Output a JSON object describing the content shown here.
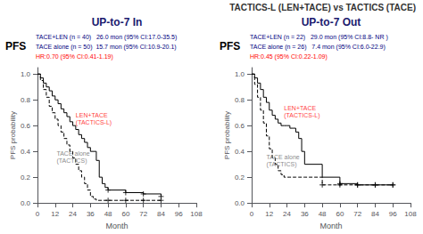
{
  "title": "TACTICS-L (LEN+TACE) vs TACTICS (TACE)",
  "chart_data": [
    {
      "type": "line",
      "title": "UP-to-7 In",
      "subtitle": "PFS",
      "xlabel": "Month",
      "ylabel": "PFS probability",
      "xlim": [
        0,
        108
      ],
      "xticks": [
        0,
        12,
        24,
        36,
        48,
        60,
        72,
        84,
        96,
        108
      ],
      "ylim": [
        0,
        1.05
      ],
      "yticks": [
        {
          "value": 0,
          "label": "0.0"
        },
        {
          "value": 0.2,
          "label": "0.2"
        },
        {
          "value": 0.4,
          "label": "0.4"
        },
        {
          "value": 0.6,
          "label": "0.6"
        },
        {
          "value": 0.8,
          "label": "0.8"
        },
        {
          "value": 1,
          "label": "1.0"
        }
      ],
      "grid": false,
      "series": [
        {
          "type": "step",
          "line_style": "solid",
          "color": "black",
          "x": [
            0,
            2,
            4,
            6,
            8,
            10,
            12,
            14,
            16,
            18,
            20,
            22,
            24,
            26,
            28,
            30,
            32,
            34,
            36,
            40,
            42,
            44,
            46,
            48,
            60,
            72,
            84
          ],
          "values": [
            1.0,
            0.97,
            0.93,
            0.9,
            0.87,
            0.83,
            0.8,
            0.77,
            0.73,
            0.7,
            0.67,
            0.63,
            0.6,
            0.57,
            0.53,
            0.5,
            0.47,
            0.43,
            0.4,
            0.33,
            0.2,
            0.15,
            0.12,
            0.1,
            0.08,
            0.07,
            0.05
          ]
        },
        {
          "type": "step",
          "line_style": "dashed",
          "color": "black",
          "x": [
            0,
            2,
            4,
            6,
            8,
            10,
            12,
            14,
            16,
            18,
            20,
            22,
            24,
            26,
            28,
            30,
            32,
            34,
            36,
            38,
            40,
            48,
            60,
            72,
            84
          ],
          "values": [
            1.0,
            0.95,
            0.88,
            0.82,
            0.75,
            0.7,
            0.65,
            0.6,
            0.55,
            0.5,
            0.45,
            0.4,
            0.35,
            0.3,
            0.25,
            0.2,
            0.15,
            0.1,
            0.05,
            0.03,
            0.02,
            0.02,
            0.02,
            0.02,
            0.02
          ]
        },
        {
          "type": "scatter",
          "marker": "plus",
          "color": "black",
          "x": [
            48,
            60,
            72,
            84
          ],
          "values": [
            0.1,
            0.08,
            0.07,
            0.05
          ]
        },
        {
          "type": "scatter",
          "marker": "plus",
          "color": "black",
          "x": [
            48,
            60,
            72,
            84
          ],
          "values": [
            0.02,
            0.02,
            0.02,
            0.02
          ]
        }
      ],
      "annotations": [
        {
          "text": "TACE+LEN (n = 40)   26.0 mon (95% CI:17.0-35.5)",
          "color": "navy"
        },
        {
          "text": "TACE alone (n = 50)  15.7 mon (95% CI:10.9-20.1)",
          "color": "navy"
        },
        {
          "text": "HR:0.70 (95% CI:0.41-1.19)",
          "color": "red"
        },
        {
          "text": "LEN+TACE\n(TACTICS-L)",
          "x": 26,
          "y": 0.6,
          "color": "red"
        },
        {
          "text": "TACE alone\n(TACTICS)",
          "x": 13,
          "y": 0.3,
          "color": "dimgray"
        }
      ]
    },
    {
      "type": "line",
      "title": "UP-to-7 Out",
      "subtitle": "PFS",
      "xlabel": "Month",
      "ylabel": "PFS probability",
      "xlim": [
        0,
        108
      ],
      "xticks": [
        0,
        12,
        24,
        36,
        48,
        60,
        72,
        84,
        96,
        108
      ],
      "ylim": [
        0,
        1.05
      ],
      "yticks": [
        {
          "value": 0,
          "label": "0.0"
        },
        {
          "value": 0.2,
          "label": "0.2"
        },
        {
          "value": 0.4,
          "label": "0.4"
        },
        {
          "value": 0.6,
          "label": "0.6"
        },
        {
          "value": 0.8,
          "label": "0.8"
        },
        {
          "value": 1,
          "label": "1.0"
        }
      ],
      "grid": false,
      "series": [
        {
          "type": "step",
          "line_style": "solid",
          "color": "black",
          "x": [
            0,
            2,
            4,
            6,
            8,
            10,
            12,
            14,
            16,
            18,
            20,
            22,
            24,
            26,
            28,
            30,
            32,
            34,
            36,
            48,
            60,
            72,
            84,
            96
          ],
          "values": [
            1.0,
            0.97,
            0.93,
            0.88,
            0.82,
            0.78,
            0.72,
            0.68,
            0.65,
            0.62,
            0.6,
            0.6,
            0.6,
            0.58,
            0.58,
            0.55,
            0.5,
            0.4,
            0.3,
            0.2,
            0.15,
            0.14,
            0.14,
            0.14
          ]
        },
        {
          "type": "step",
          "line_style": "dashed",
          "color": "black",
          "x": [
            0,
            2,
            4,
            6,
            8,
            10,
            12,
            14,
            16,
            18,
            20,
            22,
            24,
            26,
            28,
            30,
            32,
            34,
            36,
            48,
            60,
            72,
            84,
            96
          ],
          "values": [
            1.0,
            0.92,
            0.82,
            0.72,
            0.62,
            0.52,
            0.42,
            0.35,
            0.3,
            0.25,
            0.22,
            0.2,
            0.2,
            0.2,
            0.2,
            0.2,
            0.2,
            0.2,
            0.2,
            0.14,
            0.14,
            0.14,
            0.14,
            0.14
          ]
        },
        {
          "type": "scatter",
          "marker": "plus",
          "color": "black",
          "x": [
            60,
            72,
            84,
            96
          ],
          "values": [
            0.15,
            0.14,
            0.14,
            0.14
          ]
        },
        {
          "type": "scatter",
          "marker": "plus",
          "color": "black",
          "x": [
            48,
            60,
            72,
            84,
            96
          ],
          "values": [
            0.14,
            0.14,
            0.14,
            0.14,
            0.14
          ]
        }
      ],
      "annotations": [
        {
          "text": "TACE+LEN (n = 22)   29.0 mon (95% CI:8.8- NR )",
          "color": "navy"
        },
        {
          "text": "TACE alone (n = 26)   7.4 mon (95% CI:6.0-22.9)",
          "color": "navy"
        },
        {
          "text": "HR:0.45 (95% CI:0.22-1.09)",
          "color": "red"
        },
        {
          "text": "LEN+TACE\n(TACTICS-L)",
          "x": 22,
          "y": 0.65,
          "color": "red"
        },
        {
          "text": "TACE alone\n(TACTICS)",
          "x": 10,
          "y": 0.27,
          "color": "dimgray"
        }
      ]
    }
  ]
}
